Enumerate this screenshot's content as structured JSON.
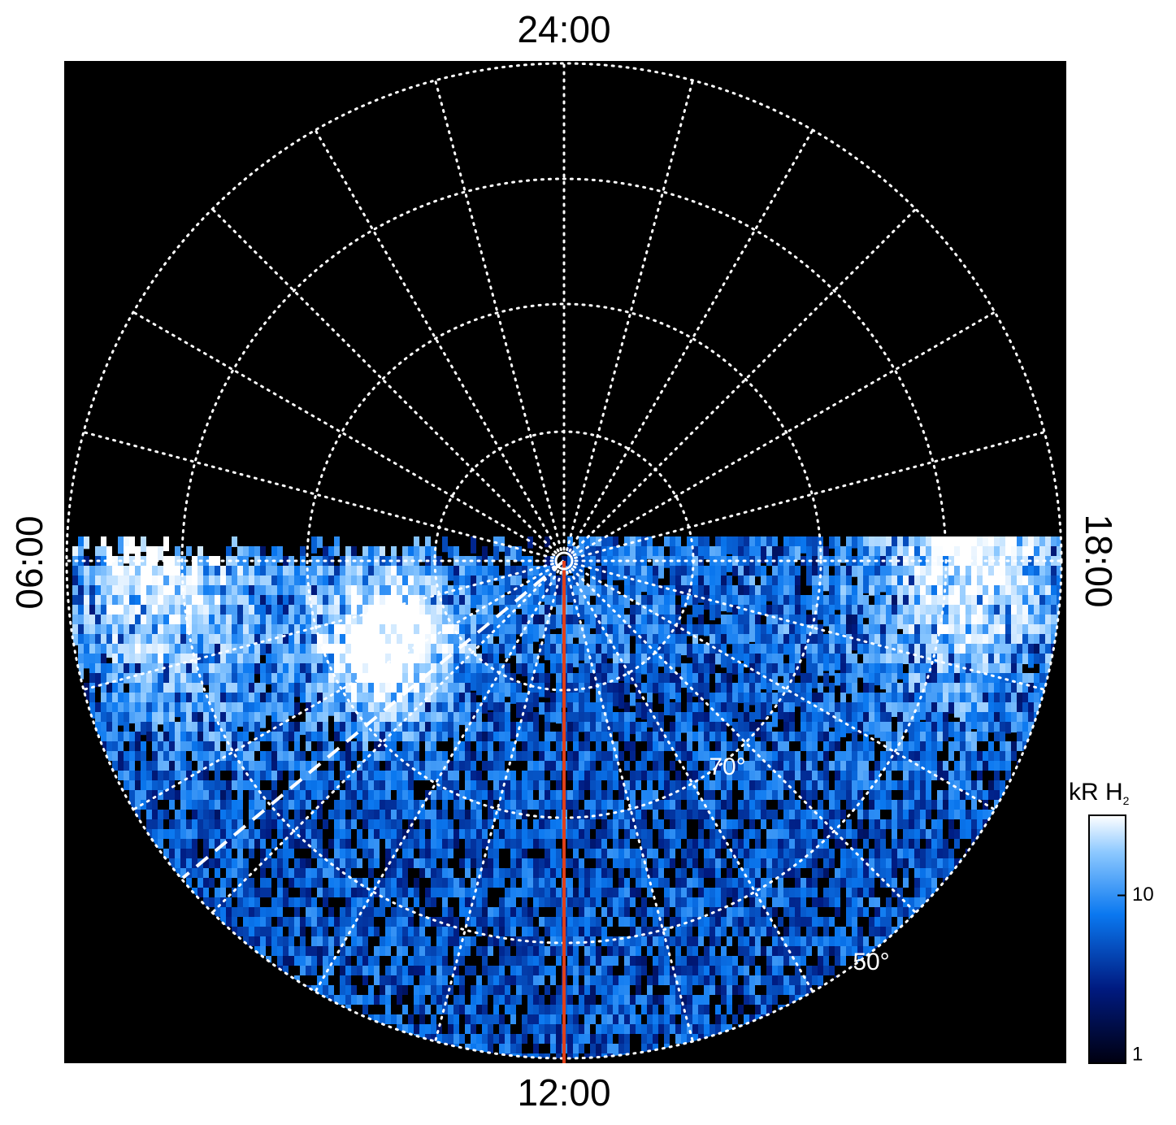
{
  "chart_data": {
    "type": "polar-image",
    "time_labels": {
      "top": "24:00",
      "left": "06:00",
      "bottom": "12:00",
      "right": "18:00"
    },
    "latitude_labels": [
      "70°",
      "50°"
    ],
    "colorbar": {
      "label": "kR H",
      "label_subscript": "2",
      "lim": [
        1,
        30
      ],
      "ticks": [
        1,
        10
      ],
      "log": true
    }
  }
}
